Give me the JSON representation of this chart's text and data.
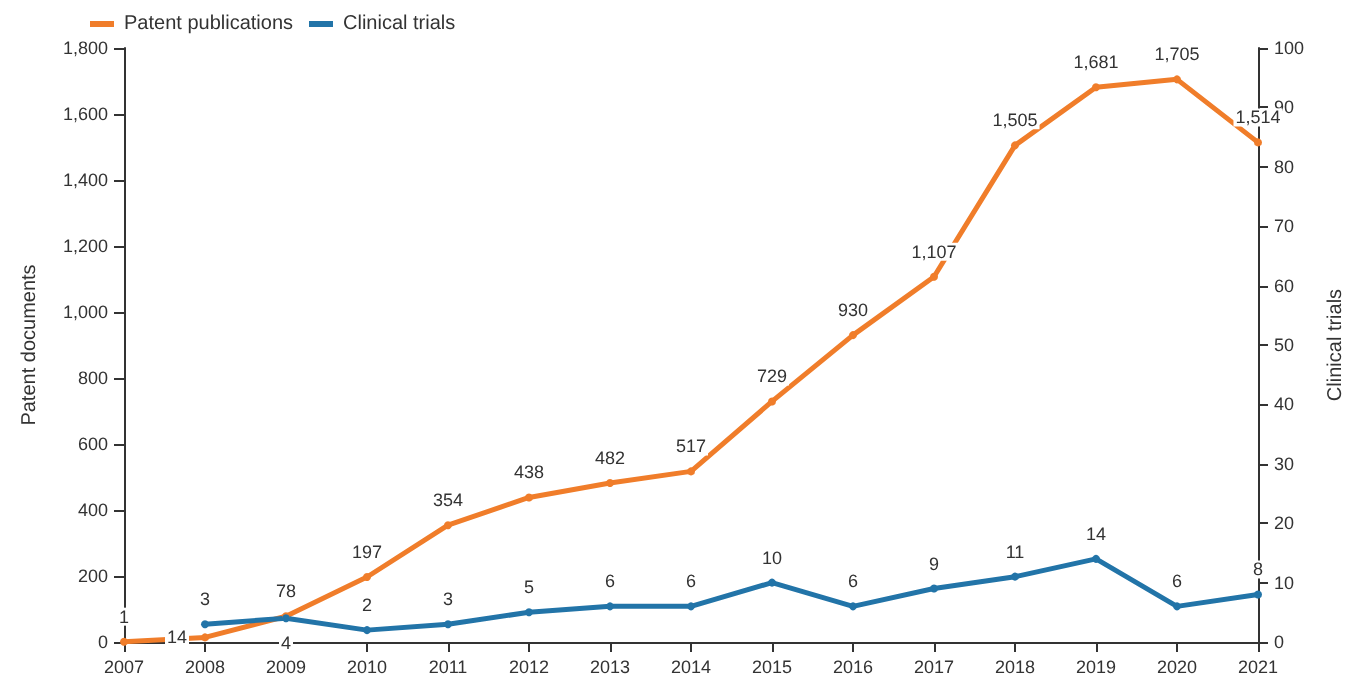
{
  "chart_data": {
    "type": "line",
    "categories": [
      "2007",
      "2008",
      "2009",
      "2010",
      "2011",
      "2012",
      "2013",
      "2014",
      "2015",
      "2016",
      "2017",
      "2018",
      "2019",
      "2020",
      "2021"
    ],
    "ylabel": "Patent documents",
    "y2label": "Clinical trials",
    "series": [
      {
        "name": "Patent publications",
        "color": "#f07d2a",
        "values": [
          1,
          14,
          78,
          197,
          354,
          438,
          482,
          517,
          729,
          930,
          1107,
          1505,
          1681,
          1705,
          1514
        ],
        "value_labels": [
          "1",
          "14",
          "78",
          "197",
          "354",
          "438",
          "482",
          "517",
          "729",
          "930",
          "1,107",
          "1,505",
          "1,681",
          "1,705",
          "1,514"
        ]
      },
      {
        "name": "Clinical trials",
        "color": "#2274a8",
        "axis": "y2",
        "values": [
          null,
          3,
          4,
          2,
          3,
          5,
          6,
          6,
          10,
          6,
          9,
          11,
          14,
          6,
          8
        ],
        "value_labels": [
          null,
          "3",
          "4",
          "2",
          "3",
          "5",
          "6",
          "6",
          "10",
          "6",
          "9",
          "11",
          "14",
          "6",
          "8"
        ]
      }
    ],
    "ylim": [
      0,
      1800
    ],
    "yticks": [
      0,
      200,
      400,
      600,
      800,
      {
        "value": 1000,
        "label": "1,000"
      },
      {
        "value": 1200,
        "label": "1,200"
      },
      {
        "value": 1400,
        "label": "1,400"
      },
      {
        "value": 1600,
        "label": "1,600"
      },
      {
        "value": 1800,
        "label": "1,800"
      }
    ],
    "y2lim": [
      0,
      100
    ],
    "y2ticks": [
      0,
      10,
      20,
      30,
      40,
      50,
      60,
      70,
      80,
      90,
      100
    ],
    "legend": "top left",
    "grid": false,
    "marker": "circle",
    "line_style": "solid"
  }
}
